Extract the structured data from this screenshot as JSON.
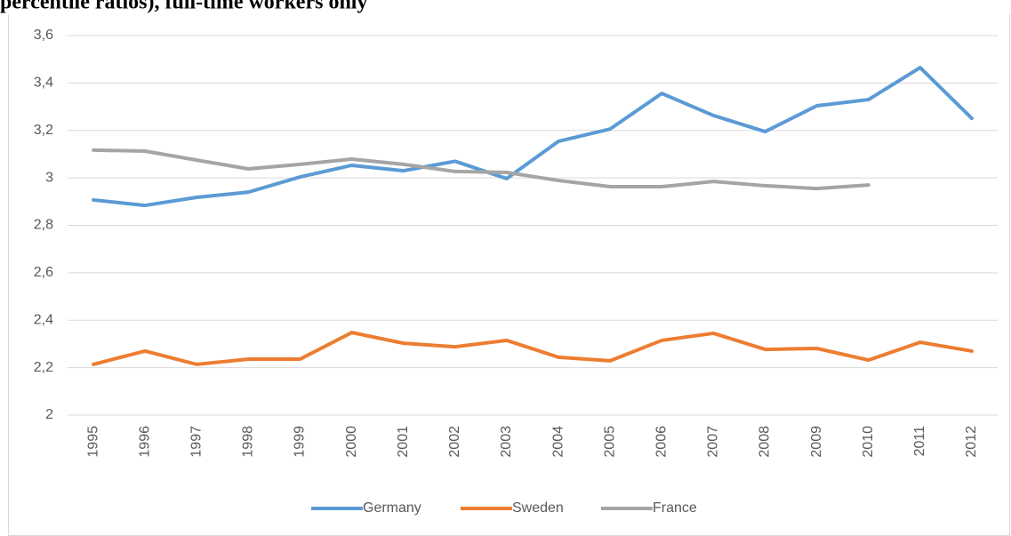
{
  "chart_data": {
    "type": "line",
    "title": "percentile ratios), full-time workers only",
    "categories": [
      "1995",
      "1996",
      "1997",
      "1998",
      "1999",
      "2000",
      "2001",
      "2002",
      "2003",
      "2004",
      "2005",
      "2006",
      "2007",
      "2008",
      "2009",
      "2010",
      "2011",
      "2012"
    ],
    "series": [
      {
        "name": "Germany",
        "color": "#5b9bd5",
        "values": [
          2.907,
          2.884,
          2.918,
          2.94,
          3.004,
          3.053,
          3.03,
          3.07,
          2.997,
          3.154,
          3.206,
          3.356,
          3.263,
          3.195,
          3.304,
          3.33,
          3.465,
          3.251
        ]
      },
      {
        "name": "Sweden",
        "color": "#ed7d31",
        "values": [
          2.214,
          2.27,
          2.214,
          2.236,
          2.236,
          2.348,
          2.303,
          2.288,
          2.315,
          2.244,
          2.229,
          2.315,
          2.345,
          2.277,
          2.281,
          2.232,
          2.307,
          2.27
        ]
      },
      {
        "name": "France",
        "color": "#a5a5a5",
        "values": [
          3.117,
          3.113,
          3.075,
          3.038,
          3.057,
          3.079,
          3.057,
          3.027,
          3.023,
          2.989,
          2.963,
          2.963,
          2.985,
          2.967,
          2.955,
          2.97,
          null,
          null
        ]
      }
    ],
    "ylim": [
      2,
      3.6
    ],
    "yticks": [
      2,
      {
        "value": 2.2,
        "label": "2,2"
      },
      {
        "value": 2.4,
        "label": "2,4"
      },
      {
        "value": 2.6,
        "label": "2,6"
      },
      {
        "value": 2.8,
        "label": "2,8"
      },
      3,
      {
        "value": 3.2,
        "label": "3,2"
      },
      {
        "value": 3.4,
        "label": "3,4"
      },
      {
        "value": 3.6,
        "label": "3,6"
      }
    ],
    "grid": true,
    "legend": "bottom"
  }
}
